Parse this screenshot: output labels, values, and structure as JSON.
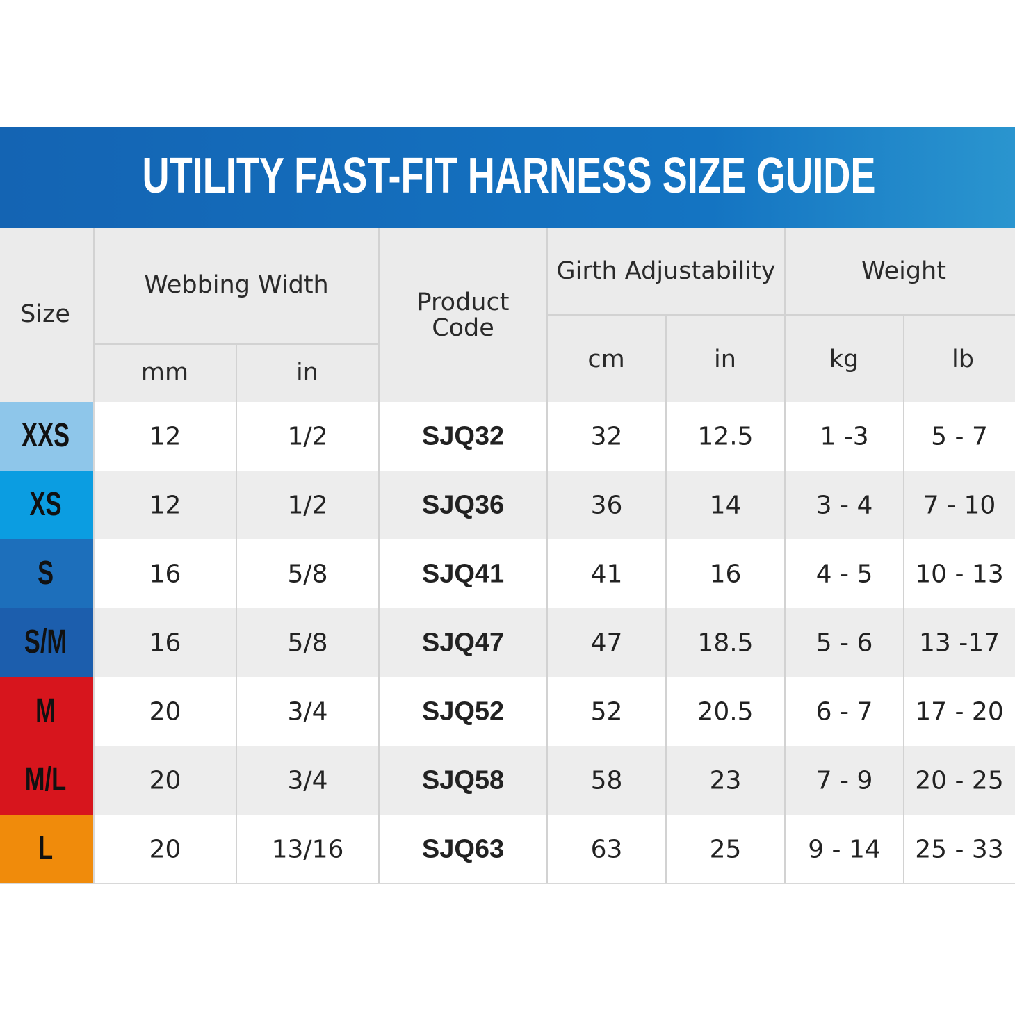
{
  "header": {
    "title": "UTILITY FAST-FIT HARNESS SIZE GUIDE"
  },
  "table": {
    "headers": {
      "size": "Size",
      "webbing": "Webbing Width",
      "product_code": [
        "Product",
        "Code"
      ],
      "girth": "Girth Adjustability",
      "weight": "Weight",
      "units": [
        "mm",
        "in",
        "cm",
        "in",
        "kg",
        "lb"
      ]
    },
    "size_colors": [
      "#8ec6ea",
      "#0b9de1",
      "#1d6fbb",
      "#1c5ead",
      "#d7151d",
      "#d7151d",
      "#f08b0b"
    ],
    "rows": [
      [
        "XXS",
        "12",
        "1/2",
        "SJQ32",
        "32",
        "12.5",
        "1 -3",
        "5 - 7"
      ],
      [
        "XS",
        "12",
        "1/2",
        "SJQ36",
        "36",
        "14",
        "3 - 4",
        "7 - 10"
      ],
      [
        "S",
        "16",
        "5/8",
        "SJQ41",
        "41",
        "16",
        "4 - 5",
        "10 - 13"
      ],
      [
        "S/M",
        "16",
        "5/8",
        "SJQ47",
        "47",
        "18.5",
        "5 - 6",
        "13 -17"
      ],
      [
        "M",
        "20",
        "3/4",
        "SJQ52",
        "52",
        "20.5",
        "6 - 7",
        "17 - 20"
      ],
      [
        "M/L",
        "20",
        "3/4",
        "SJQ58",
        "58",
        "23",
        "7 - 9",
        "20 - 25"
      ],
      [
        "L",
        "20",
        "13/16",
        "SJQ63",
        "63",
        "25",
        "9 - 14",
        "25 - 33"
      ]
    ]
  }
}
